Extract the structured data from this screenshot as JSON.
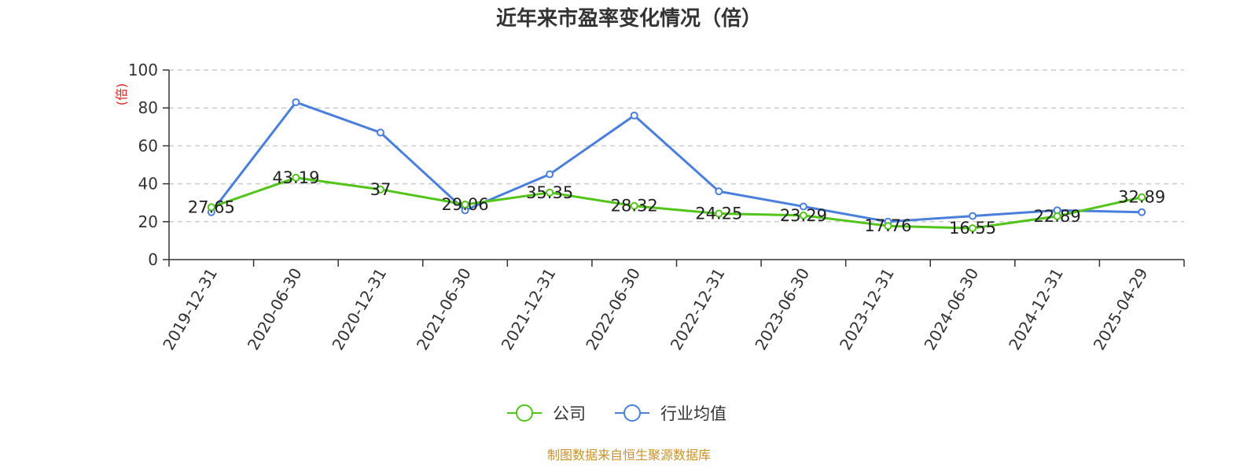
{
  "chart_data": {
    "type": "line",
    "title": "近年来市盈率变化情况（倍）",
    "ylabel": "(倍)",
    "xlabel": "",
    "categories": [
      "2019-12-31",
      "2020-06-30",
      "2020-12-31",
      "2021-06-30",
      "2021-12-31",
      "2022-06-30",
      "2022-12-31",
      "2023-06-30",
      "2023-12-31",
      "2024-06-30",
      "2024-12-31",
      "2025-04-29"
    ],
    "series": [
      {
        "name": "公司",
        "color": "#52c41a",
        "values": [
          27.65,
          43.19,
          37,
          29.06,
          35.35,
          28.32,
          24.25,
          23.29,
          17.76,
          16.55,
          22.89,
          32.89
        ],
        "labels": [
          "27.65",
          "43.19",
          "37",
          "29.06",
          "35.35",
          "28.32",
          "24.25",
          "23.29",
          "17.76",
          "16.55",
          "22.89",
          "32.89"
        ]
      },
      {
        "name": "行业均值",
        "color": "#4a7fdc",
        "values": [
          25,
          83,
          67,
          26,
          45,
          76,
          36,
          28,
          20,
          23,
          26,
          25
        ]
      }
    ],
    "ylim": [
      0,
      100
    ],
    "yticks": [
      "0",
      "20",
      "40",
      "60",
      "80",
      "100"
    ],
    "grid": true,
    "legend_position": "bottom-center"
  },
  "footer": {
    "source": "制图数据来自恒生聚源数据库"
  },
  "colors": {
    "ylabel": "#e02020",
    "source": "#c8922a",
    "grid": "#cccccc",
    "axis": "#333333"
  }
}
